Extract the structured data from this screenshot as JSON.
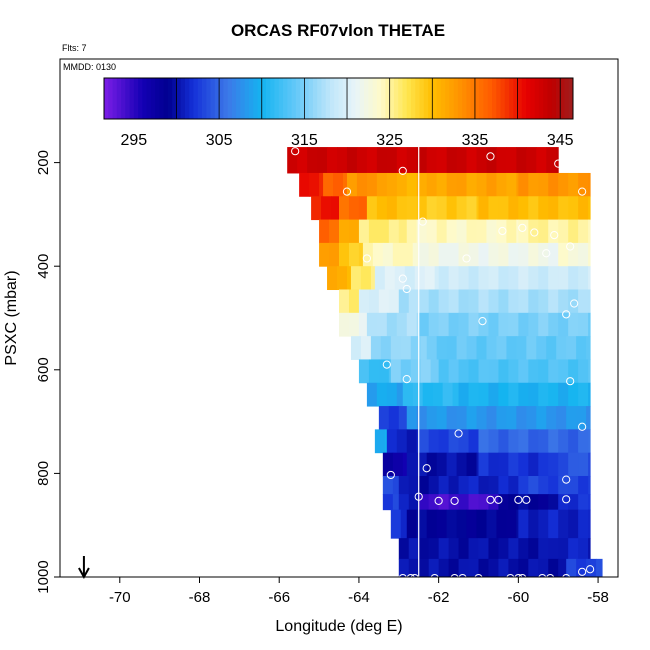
{
  "chart_data": {
    "type": "heatmap",
    "title": "ORCAS RF07vlon THETAE",
    "flts_note": "Flts: 7",
    "mmdd_note": "MMDD: 0130",
    "xlabel": "Longitude (deg E)",
    "ylabel": "PSXC (mbar)",
    "xlim": [
      -71.5,
      -57.5
    ],
    "ylim": [
      1000,
      0
    ],
    "x_ticks": [
      -70,
      -68,
      -66,
      -64,
      -62,
      -60,
      -58
    ],
    "x_tick_labels": [
      "-70",
      "-68",
      "-66",
      "-64",
      "-62",
      "-60",
      "-58"
    ],
    "y_ticks": [
      200,
      400,
      600,
      800,
      1000
    ],
    "y_tick_labels": [
      "200",
      "400",
      "600",
      "800",
      "1000"
    ],
    "colorbar": {
      "min": 291.5,
      "max": 346.5,
      "ticks": [
        295,
        305,
        315,
        325,
        335,
        345
      ],
      "tick_labels": [
        "295",
        "305",
        "315",
        "325",
        "335",
        "345"
      ],
      "separators": [
        300,
        305,
        310,
        315,
        320,
        325,
        330,
        335,
        340,
        345
      ],
      "stops": [
        [
          291.5,
          "#7d1ee8"
        ],
        [
          296,
          "#1400b4"
        ],
        [
          299,
          "#000090"
        ],
        [
          302,
          "#1430d8"
        ],
        [
          306,
          "#3c78e8"
        ],
        [
          310,
          "#14b4f0"
        ],
        [
          314,
          "#64c8f8"
        ],
        [
          318,
          "#bee6fa"
        ],
        [
          321,
          "#e8f4f8"
        ],
        [
          324,
          "#fffac8"
        ],
        [
          327,
          "#ffe650"
        ],
        [
          330,
          "#ffbe00"
        ],
        [
          333,
          "#ff9600"
        ],
        [
          337,
          "#ff5a00"
        ],
        [
          341,
          "#e60000"
        ],
        [
          344,
          "#be0000"
        ],
        [
          346.5,
          "#a01e1e"
        ]
      ]
    },
    "vertical_line_lon": -62.5,
    "arrow_lon": -70.9,
    "rows": [
      {
        "p0": 170,
        "p1": 220,
        "segs": [
          [
            -65.8,
            -59.0,
            343
          ]
        ]
      },
      {
        "p0": 220,
        "p1": 265,
        "segs": [
          [
            -65.5,
            -64.9,
            340
          ],
          [
            -64.9,
            -64.3,
            336
          ],
          [
            -64.3,
            -63.3,
            333
          ],
          [
            -63.3,
            -62.3,
            331
          ],
          [
            -62.3,
            -60.0,
            332
          ],
          [
            -60.0,
            -58.2,
            333
          ]
        ]
      },
      {
        "p0": 265,
        "p1": 310,
        "segs": [
          [
            -65.2,
            -64.5,
            340
          ],
          [
            -64.5,
            -63.8,
            336
          ],
          [
            -63.8,
            -62.8,
            330
          ],
          [
            -62.8,
            -61.0,
            329
          ],
          [
            -61.0,
            -58.2,
            330
          ]
        ]
      },
      {
        "p0": 310,
        "p1": 355,
        "segs": [
          [
            -65.0,
            -64.5,
            336
          ],
          [
            -64.5,
            -64.0,
            331
          ],
          [
            -64.0,
            -62.8,
            326
          ],
          [
            -62.8,
            -60.0,
            324
          ],
          [
            -60.0,
            -58.2,
            325
          ]
        ]
      },
      {
        "p0": 355,
        "p1": 400,
        "segs": [
          [
            -65.0,
            -64.5,
            333
          ],
          [
            -64.5,
            -63.9,
            329
          ],
          [
            -63.9,
            -62.5,
            324
          ],
          [
            -62.5,
            -59.0,
            322
          ],
          [
            -59.0,
            -58.2,
            323
          ]
        ]
      },
      {
        "p0": 400,
        "p1": 445,
        "segs": [
          [
            -64.8,
            -64.2,
            331
          ],
          [
            -64.2,
            -63.6,
            326
          ],
          [
            -63.6,
            -62.0,
            320
          ],
          [
            -62.0,
            -58.2,
            319
          ]
        ]
      },
      {
        "p0": 445,
        "p1": 490,
        "segs": [
          [
            -64.5,
            -64.0,
            326
          ],
          [
            -64.0,
            -63.0,
            320
          ],
          [
            -63.0,
            -58.2,
            317
          ]
        ]
      },
      {
        "p0": 490,
        "p1": 535,
        "segs": [
          [
            -64.5,
            -63.8,
            322
          ],
          [
            -63.8,
            -62.5,
            317
          ],
          [
            -62.5,
            -58.2,
            315
          ]
        ]
      },
      {
        "p0": 535,
        "p1": 580,
        "segs": [
          [
            -64.2,
            -63.7,
            320
          ],
          [
            -63.7,
            -62.3,
            316
          ],
          [
            -62.3,
            -58.2,
            314
          ]
        ]
      },
      {
        "p0": 580,
        "p1": 625,
        "segs": [
          [
            -64.0,
            -63.2,
            312
          ],
          [
            -63.2,
            -62.0,
            315
          ],
          [
            -62.0,
            -58.2,
            313
          ]
        ]
      },
      {
        "p0": 625,
        "p1": 670,
        "segs": [
          [
            -63.8,
            -62.9,
            309
          ],
          [
            -62.9,
            -61.5,
            311
          ],
          [
            -61.5,
            -58.2,
            310
          ]
        ]
      },
      {
        "p0": 670,
        "p1": 715,
        "segs": [
          [
            -63.5,
            -62.8,
            303
          ],
          [
            -62.8,
            -58.2,
            308
          ]
        ]
      },
      {
        "p0": 715,
        "p1": 760,
        "segs": [
          [
            -63.6,
            -63.3,
            310
          ],
          [
            -63.3,
            -62.5,
            301
          ],
          [
            -62.5,
            -61.0,
            303
          ],
          [
            -61.0,
            -58.2,
            305
          ]
        ]
      },
      {
        "p0": 760,
        "p1": 805,
        "segs": [
          [
            -63.4,
            -62.8,
            297
          ],
          [
            -62.8,
            -61.0,
            300
          ],
          [
            -61.0,
            -59.0,
            302
          ],
          [
            -59.0,
            -58.2,
            304
          ]
        ]
      },
      {
        "p0": 805,
        "p1": 840,
        "segs": [
          [
            -63.4,
            -63.0,
            304
          ],
          [
            -63.0,
            -62.0,
            300
          ],
          [
            -62.0,
            -60.0,
            301
          ],
          [
            -60.0,
            -58.2,
            303
          ]
        ]
      },
      {
        "p0": 840,
        "p1": 870,
        "segs": [
          [
            -63.4,
            -63.0,
            303
          ],
          [
            -63.0,
            -62.5,
            301
          ],
          [
            -62.5,
            -60.5,
            294
          ],
          [
            -60.5,
            -59.0,
            299
          ],
          [
            -59.0,
            -58.2,
            302
          ]
        ]
      },
      {
        "p0": 870,
        "p1": 925,
        "segs": [
          [
            -63.2,
            -62.8,
            302
          ],
          [
            -62.8,
            -60.0,
            299
          ],
          [
            -60.0,
            -58.2,
            301
          ]
        ]
      },
      {
        "p0": 925,
        "p1": 965,
        "segs": [
          [
            -63.0,
            -62.5,
            300
          ],
          [
            -62.5,
            -59.0,
            300
          ],
          [
            -59.0,
            -58.2,
            301
          ]
        ]
      },
      {
        "p0": 965,
        "p1": 1000,
        "segs": [
          [
            -63.0,
            -62.5,
            300
          ],
          [
            -62.5,
            -58.8,
            300
          ],
          [
            -58.8,
            -57.9,
            303
          ]
        ]
      }
    ],
    "points": [
      [
        -65.6,
        178
      ],
      [
        -60.7,
        188
      ],
      [
        -59.0,
        202
      ],
      [
        -62.9,
        216
      ],
      [
        -64.3,
        256
      ],
      [
        -58.4,
        256
      ],
      [
        -62.4,
        314
      ],
      [
        -60.4,
        332
      ],
      [
        -59.9,
        326
      ],
      [
        -59.6,
        335
      ],
      [
        -59.1,
        340
      ],
      [
        -58.7,
        362
      ],
      [
        -63.8,
        385
      ],
      [
        -61.3,
        385
      ],
      [
        -59.3,
        375
      ],
      [
        -62.9,
        424
      ],
      [
        -62.8,
        444
      ],
      [
        -58.6,
        472
      ],
      [
        -60.9,
        506
      ],
      [
        -58.8,
        493
      ],
      [
        -63.3,
        590
      ],
      [
        -62.8,
        618
      ],
      [
        -58.7,
        622
      ],
      [
        -58.4,
        710
      ],
      [
        -61.5,
        723
      ],
      [
        -62.3,
        790
      ],
      [
        -63.2,
        803
      ],
      [
        -58.8,
        812
      ],
      [
        -62.5,
        845
      ],
      [
        -62.0,
        853
      ],
      [
        -61.6,
        853
      ],
      [
        -60.7,
        851
      ],
      [
        -60.5,
        851
      ],
      [
        -60.0,
        851
      ],
      [
        -59.8,
        851
      ],
      [
        -58.8,
        850
      ],
      [
        -62.9,
        1002
      ],
      [
        -62.7,
        1002
      ],
      [
        -62.6,
        1002
      ],
      [
        -62.1,
        1002
      ],
      [
        -61.6,
        1002
      ],
      [
        -61.4,
        1002
      ],
      [
        -61.0,
        1002
      ],
      [
        -60.2,
        1002
      ],
      [
        -60.0,
        1002
      ],
      [
        -59.9,
        1002
      ],
      [
        -59.4,
        1002
      ],
      [
        -59.2,
        1002
      ],
      [
        -58.8,
        1002
      ],
      [
        -58.4,
        990
      ],
      [
        -58.2,
        985
      ]
    ]
  }
}
